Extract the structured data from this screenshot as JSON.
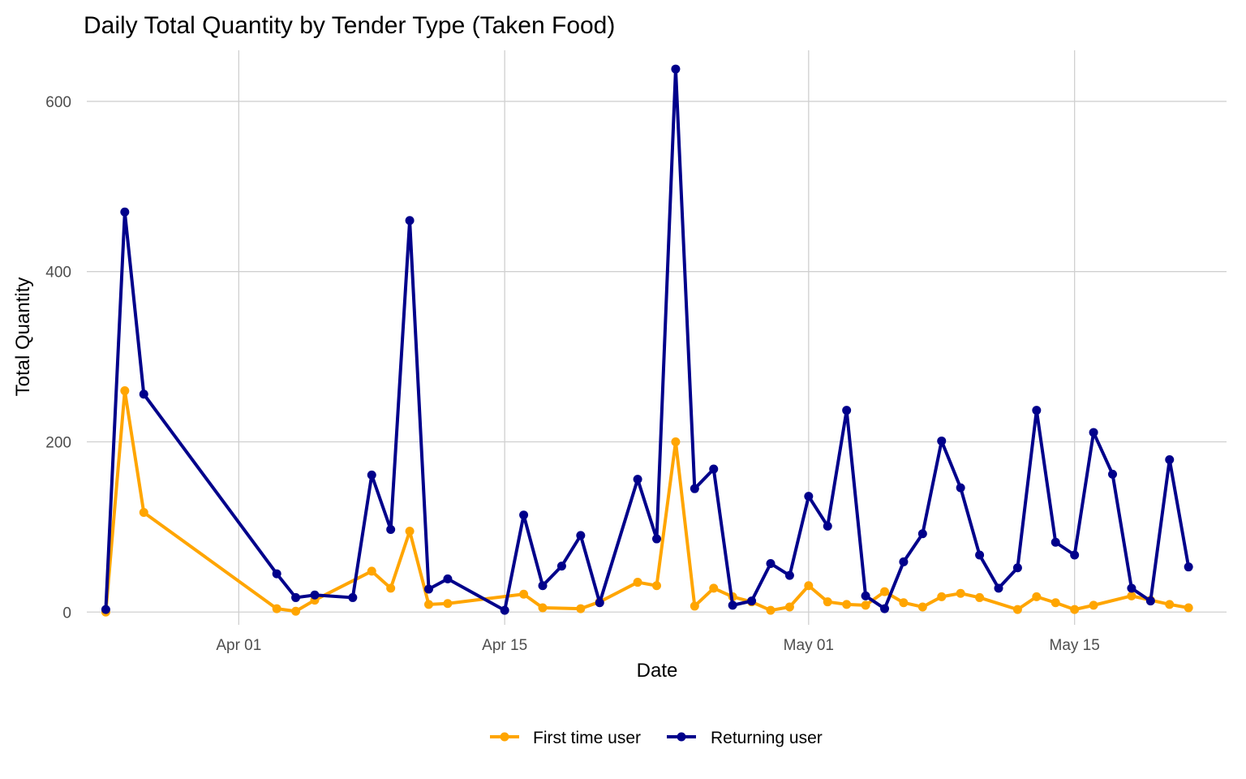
{
  "chart_data": {
    "type": "line",
    "title": "Daily Total Quantity by Tender Type (Taken Food)",
    "xlabel": "Date",
    "ylabel": "Total Quantity",
    "xlim": [
      "2024-03-24",
      "2024-05-23"
    ],
    "ylim": [
      -15,
      660
    ],
    "x_ticks": [
      {
        "date": "2024-04-01",
        "label": "Apr 01"
      },
      {
        "date": "2024-04-15",
        "label": "Apr 15"
      },
      {
        "date": "2024-05-01",
        "label": "May 01"
      },
      {
        "date": "2024-05-15",
        "label": "May 15"
      }
    ],
    "y_ticks": [
      0,
      200,
      400,
      600
    ],
    "grid": true,
    "legend_position": "bottom",
    "series": [
      {
        "name": "First time user",
        "color": "#FFA500",
        "points": [
          [
            "2024-03-25",
            0
          ],
          [
            "2024-03-26",
            260
          ],
          [
            "2024-03-27",
            117
          ],
          [
            "2024-04-03",
            4
          ],
          [
            "2024-04-04",
            1
          ],
          [
            "2024-04-05",
            14
          ],
          [
            "2024-04-08",
            48
          ],
          [
            "2024-04-09",
            28
          ],
          [
            "2024-04-10",
            95
          ],
          [
            "2024-04-11",
            9
          ],
          [
            "2024-04-12",
            10
          ],
          [
            "2024-04-16",
            21
          ],
          [
            "2024-04-17",
            5
          ],
          [
            "2024-04-19",
            4
          ],
          [
            "2024-04-20",
            12
          ],
          [
            "2024-04-22",
            35
          ],
          [
            "2024-04-23",
            31
          ],
          [
            "2024-04-24",
            200
          ],
          [
            "2024-04-25",
            7
          ],
          [
            "2024-04-26",
            28
          ],
          [
            "2024-04-27",
            18
          ],
          [
            "2024-04-28",
            12
          ],
          [
            "2024-04-29",
            2
          ],
          [
            "2024-04-30",
            6
          ],
          [
            "2024-05-01",
            31
          ],
          [
            "2024-05-02",
            12
          ],
          [
            "2024-05-03",
            9
          ],
          [
            "2024-05-04",
            8
          ],
          [
            "2024-05-05",
            24
          ],
          [
            "2024-05-06",
            11
          ],
          [
            "2024-05-07",
            6
          ],
          [
            "2024-05-08",
            18
          ],
          [
            "2024-05-09",
            22
          ],
          [
            "2024-05-10",
            17
          ],
          [
            "2024-05-12",
            3
          ],
          [
            "2024-05-13",
            18
          ],
          [
            "2024-05-14",
            11
          ],
          [
            "2024-05-15",
            3
          ],
          [
            "2024-05-16",
            8
          ],
          [
            "2024-05-18",
            19
          ],
          [
            "2024-05-19",
            14
          ],
          [
            "2024-05-20",
            9
          ],
          [
            "2024-05-21",
            5
          ]
        ]
      },
      {
        "name": "Returning user",
        "color": "#00008B",
        "points": [
          [
            "2024-03-25",
            3
          ],
          [
            "2024-03-26",
            470
          ],
          [
            "2024-03-27",
            256
          ],
          [
            "2024-04-03",
            45
          ],
          [
            "2024-04-04",
            17
          ],
          [
            "2024-04-05",
            20
          ],
          [
            "2024-04-07",
            17
          ],
          [
            "2024-04-08",
            161
          ],
          [
            "2024-04-09",
            97
          ],
          [
            "2024-04-10",
            460
          ],
          [
            "2024-04-11",
            27
          ],
          [
            "2024-04-12",
            39
          ],
          [
            "2024-04-15",
            2
          ],
          [
            "2024-04-16",
            114
          ],
          [
            "2024-04-17",
            31
          ],
          [
            "2024-04-18",
            54
          ],
          [
            "2024-04-19",
            90
          ],
          [
            "2024-04-20",
            11
          ],
          [
            "2024-04-22",
            156
          ],
          [
            "2024-04-23",
            86
          ],
          [
            "2024-04-24",
            638
          ],
          [
            "2024-04-25",
            145
          ],
          [
            "2024-04-26",
            168
          ],
          [
            "2024-04-27",
            8
          ],
          [
            "2024-04-28",
            13
          ],
          [
            "2024-04-29",
            57
          ],
          [
            "2024-04-30",
            43
          ],
          [
            "2024-05-01",
            136
          ],
          [
            "2024-05-02",
            101
          ],
          [
            "2024-05-03",
            237
          ],
          [
            "2024-05-04",
            19
          ],
          [
            "2024-05-05",
            4
          ],
          [
            "2024-05-06",
            59
          ],
          [
            "2024-05-07",
            92
          ],
          [
            "2024-05-08",
            201
          ],
          [
            "2024-05-09",
            146
          ],
          [
            "2024-05-10",
            67
          ],
          [
            "2024-05-11",
            28
          ],
          [
            "2024-05-12",
            52
          ],
          [
            "2024-05-13",
            237
          ],
          [
            "2024-05-14",
            82
          ],
          [
            "2024-05-15",
            67
          ],
          [
            "2024-05-16",
            211
          ],
          [
            "2024-05-17",
            162
          ],
          [
            "2024-05-18",
            28
          ],
          [
            "2024-05-19",
            13
          ],
          [
            "2024-05-20",
            179
          ],
          [
            "2024-05-21",
            53
          ]
        ]
      }
    ]
  }
}
